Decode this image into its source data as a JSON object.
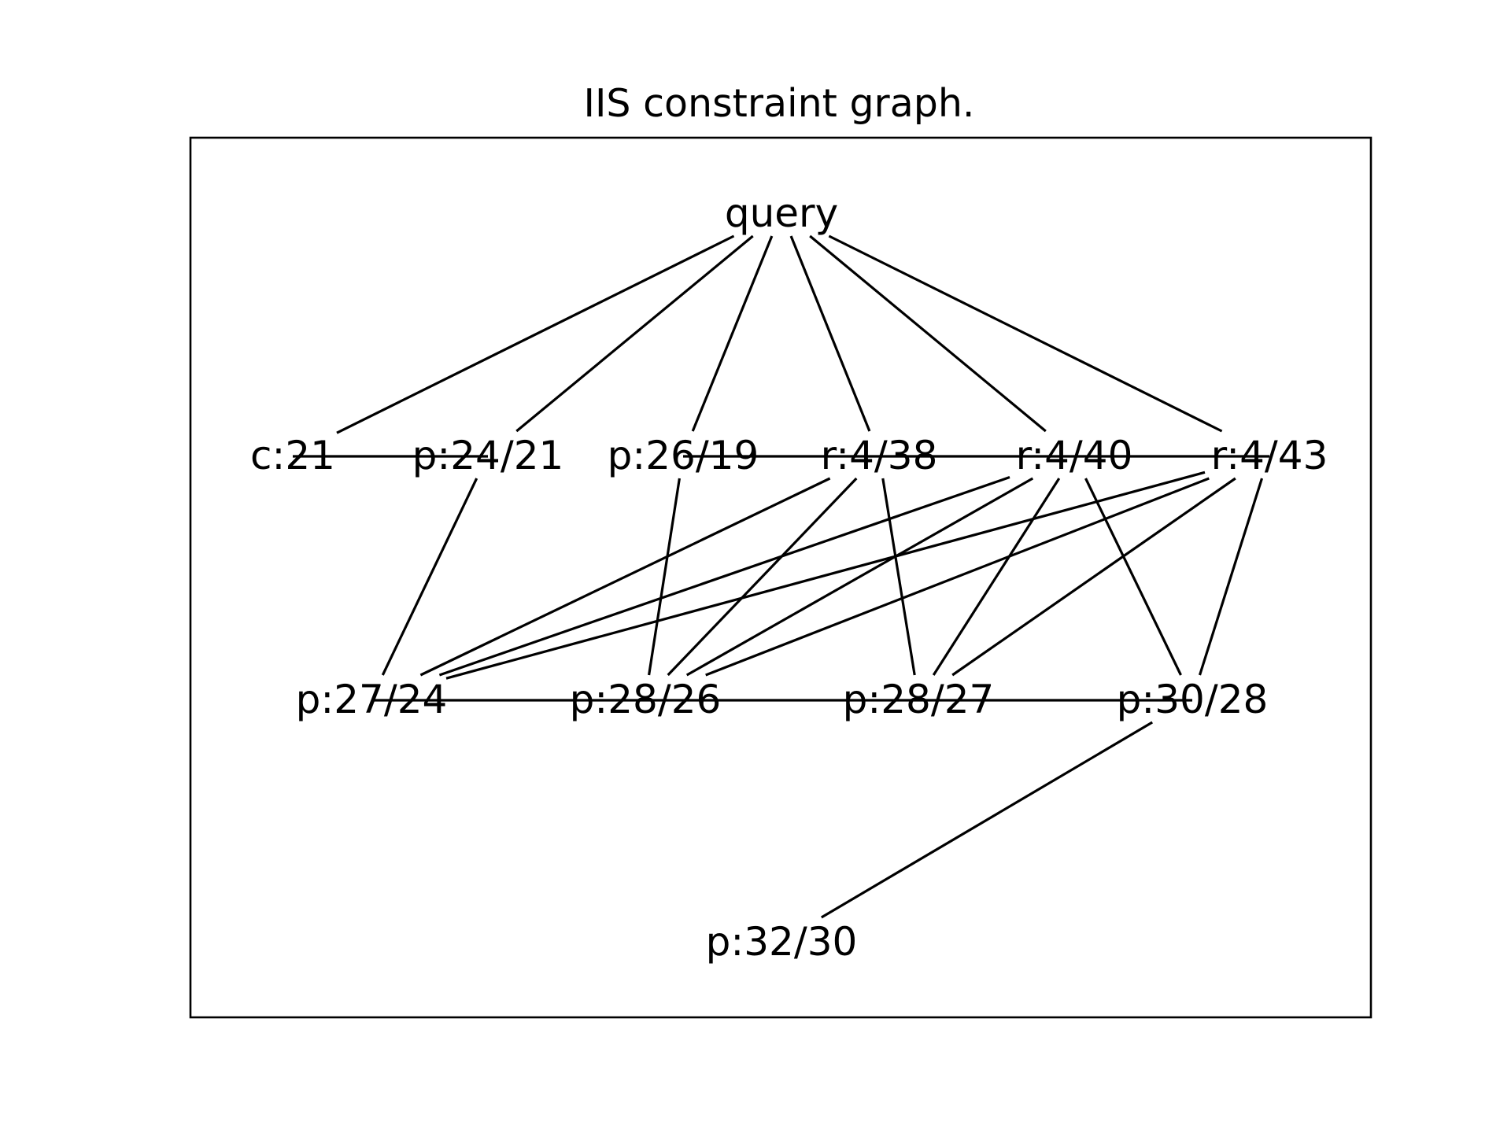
{
  "diagram": {
    "title": "IIS constraint graph.",
    "colors": {
      "background": "#ffffff",
      "ink": "#000000"
    },
    "nodes": [
      {
        "id": "query",
        "label": "query"
      },
      {
        "id": "c21",
        "label": "c:21"
      },
      {
        "id": "p2421",
        "label": "p:24/21"
      },
      {
        "id": "p2619",
        "label": "p:26/19"
      },
      {
        "id": "r438",
        "label": "r:4/38"
      },
      {
        "id": "r440",
        "label": "r:4/40"
      },
      {
        "id": "r443",
        "label": "r:4/43"
      },
      {
        "id": "p2724",
        "label": "p:27/24"
      },
      {
        "id": "p2826",
        "label": "p:28/26"
      },
      {
        "id": "p2827",
        "label": "p:28/27"
      },
      {
        "id": "p3028",
        "label": "p:30/28"
      },
      {
        "id": "p3230",
        "label": "p:32/30"
      }
    ],
    "edges": [
      [
        "query",
        "c21"
      ],
      [
        "query",
        "p2421"
      ],
      [
        "query",
        "p2619"
      ],
      [
        "query",
        "r438"
      ],
      [
        "query",
        "r440"
      ],
      [
        "query",
        "r443"
      ],
      [
        "c21",
        "p2421"
      ],
      [
        "p2619",
        "r438"
      ],
      [
        "r438",
        "r440"
      ],
      [
        "r440",
        "r443"
      ],
      [
        "p2421",
        "p2724"
      ],
      [
        "p2619",
        "p2826"
      ],
      [
        "r438",
        "p2724"
      ],
      [
        "r438",
        "p2826"
      ],
      [
        "r438",
        "p2827"
      ],
      [
        "r440",
        "p2724"
      ],
      [
        "r440",
        "p2826"
      ],
      [
        "r440",
        "p2827"
      ],
      [
        "r440",
        "p3028"
      ],
      [
        "r443",
        "p2724"
      ],
      [
        "r443",
        "p2826"
      ],
      [
        "r443",
        "p2827"
      ],
      [
        "r443",
        "p3028"
      ],
      [
        "p2724",
        "p2826"
      ],
      [
        "p2826",
        "p2827"
      ],
      [
        "p2827",
        "p3028"
      ],
      [
        "p3028",
        "p3230"
      ]
    ]
  }
}
